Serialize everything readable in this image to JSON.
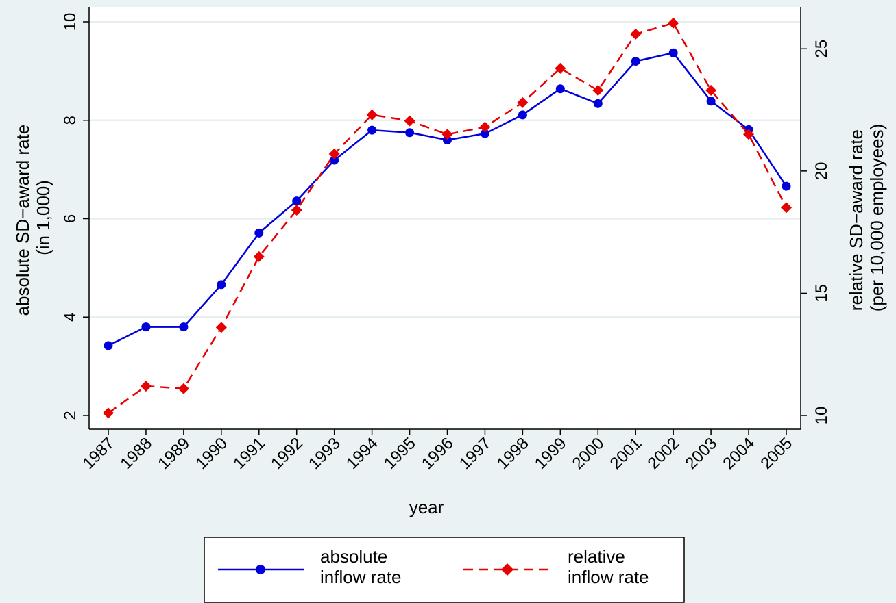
{
  "chart_data": {
    "type": "line",
    "x": [
      1987,
      1988,
      1989,
      1990,
      1991,
      1992,
      1993,
      1994,
      1995,
      1996,
      1997,
      1998,
      1999,
      2000,
      2001,
      2002,
      2003,
      2004,
      2005
    ],
    "x_tick_labels": [
      "1987",
      "1988",
      "1989",
      "1990",
      "1991",
      "1992",
      "1993",
      "1994",
      "1995",
      "1996",
      "1997",
      "1998",
      "1999",
      "2000",
      "2001",
      "2002",
      "2003",
      "2004",
      "2005"
    ],
    "xlabel": "year",
    "ylabel_left": [
      "absolute SD−award rate",
      "(in 1,000)"
    ],
    "ylabel_right": [
      "relative SD−award rate",
      "(per 10,000 employees)"
    ],
    "ylim_left": [
      2,
      10
    ],
    "ylim_right": [
      10,
      26.1
    ],
    "yticks_left": [
      2,
      4,
      6,
      8,
      10
    ],
    "yticks_right": [
      10,
      15,
      20,
      25
    ],
    "grid": "horizontal",
    "legend_position": "bottom",
    "series": [
      {
        "name": [
          "absolute",
          "inflow rate"
        ],
        "axis": "left",
        "color": "#0000dd",
        "marker": "circle",
        "line_style": "solid",
        "values": [
          3.42,
          3.8,
          3.8,
          4.66,
          5.71,
          6.36,
          7.19,
          7.8,
          7.75,
          7.6,
          7.73,
          8.11,
          8.64,
          8.34,
          9.2,
          9.37,
          8.39,
          7.81,
          6.66
        ]
      },
      {
        "name": [
          "relative",
          "inflow rate"
        ],
        "axis": "right",
        "color": "#e60000",
        "marker": "diamond",
        "line_style": "dashed",
        "values": [
          10.1,
          11.2,
          11.1,
          13.6,
          16.5,
          18.4,
          20.7,
          22.3,
          22.05,
          21.5,
          21.8,
          22.8,
          24.2,
          23.3,
          25.6,
          26.05,
          23.3,
          21.5,
          18.5
        ]
      }
    ]
  }
}
